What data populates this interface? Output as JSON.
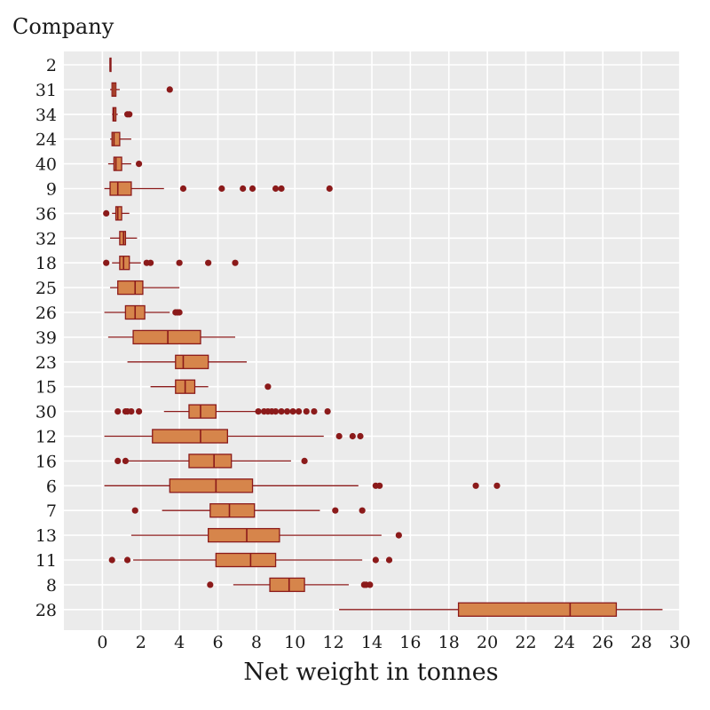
{
  "chart_data": {
    "type": "boxplot",
    "orientation": "horizontal",
    "title": "",
    "ylabel": "Company",
    "xlabel": "Net weight in tonnes",
    "xlim": [
      -2,
      30
    ],
    "xticks": [
      0,
      2,
      4,
      6,
      8,
      10,
      12,
      14,
      16,
      18,
      20,
      22,
      24,
      26,
      28,
      30
    ],
    "grid": true,
    "colors": {
      "box_fill": "#d6854b",
      "box_edge": "#8b1a1a",
      "outlier": "#8b1a1a",
      "panel": "#ebebeb",
      "grid": "#ffffff"
    },
    "categories": [
      "2",
      "31",
      "34",
      "24",
      "40",
      "9",
      "36",
      "32",
      "18",
      "25",
      "26",
      "39",
      "23",
      "15",
      "30",
      "12",
      "16",
      "6",
      "7",
      "13",
      "11",
      "8",
      "28"
    ],
    "boxes": [
      {
        "company": "2",
        "whisker_low": 0.4,
        "q1": 0.4,
        "median": 0.4,
        "q3": 0.4,
        "whisker_high": 0.4,
        "outliers": []
      },
      {
        "company": "31",
        "whisker_low": 0.4,
        "q1": 0.5,
        "median": 0.6,
        "q3": 0.7,
        "whisker_high": 0.9,
        "outliers": [
          3.5
        ]
      },
      {
        "company": "34",
        "whisker_low": 0.5,
        "q1": 0.55,
        "median": 0.6,
        "q3": 0.7,
        "whisker_high": 0.8,
        "outliers": [
          1.3,
          1.4
        ]
      },
      {
        "company": "24",
        "whisker_low": 0.4,
        "q1": 0.5,
        "median": 0.6,
        "q3": 0.9,
        "whisker_high": 1.5,
        "outliers": []
      },
      {
        "company": "40",
        "whisker_low": 0.3,
        "q1": 0.6,
        "median": 0.7,
        "q3": 1.0,
        "whisker_high": 1.5,
        "outliers": [
          1.9
        ]
      },
      {
        "company": "9",
        "whisker_low": 0.1,
        "q1": 0.4,
        "median": 0.8,
        "q3": 1.5,
        "whisker_high": 3.2,
        "outliers": [
          4.2,
          6.2,
          7.3,
          7.8,
          9.0,
          9.3,
          11.8
        ]
      },
      {
        "company": "36",
        "whisker_low": 0.5,
        "q1": 0.7,
        "median": 0.8,
        "q3": 1.0,
        "whisker_high": 1.4,
        "outliers": [
          0.2
        ]
      },
      {
        "company": "32",
        "whisker_low": 0.4,
        "q1": 0.9,
        "median": 1.1,
        "q3": 1.2,
        "whisker_high": 1.8,
        "outliers": []
      },
      {
        "company": "18",
        "whisker_low": 0.5,
        "q1": 0.9,
        "median": 1.1,
        "q3": 1.4,
        "whisker_high": 2.0,
        "outliers": [
          0.2,
          2.3,
          2.5,
          4.0,
          5.5,
          6.9
        ]
      },
      {
        "company": "25",
        "whisker_low": 0.4,
        "q1": 0.8,
        "median": 1.7,
        "q3": 2.1,
        "whisker_high": 4.0,
        "outliers": []
      },
      {
        "company": "26",
        "whisker_low": 0.1,
        "q1": 1.2,
        "median": 1.7,
        "q3": 2.2,
        "whisker_high": 3.5,
        "outliers": [
          3.8,
          3.9,
          4.0
        ]
      },
      {
        "company": "39",
        "whisker_low": 0.3,
        "q1": 1.6,
        "median": 3.4,
        "q3": 5.1,
        "whisker_high": 6.9,
        "outliers": []
      },
      {
        "company": "23",
        "whisker_low": 1.3,
        "q1": 3.8,
        "median": 4.2,
        "q3": 5.5,
        "whisker_high": 7.5,
        "outliers": []
      },
      {
        "company": "15",
        "whisker_low": 2.5,
        "q1": 3.8,
        "median": 4.3,
        "q3": 4.8,
        "whisker_high": 5.5,
        "outliers": [
          8.6
        ]
      },
      {
        "company": "30",
        "whisker_low": 3.2,
        "q1": 4.5,
        "median": 5.1,
        "q3": 5.9,
        "whisker_high": 8.0,
        "outliers": [
          0.8,
          1.2,
          1.3,
          1.5,
          1.9,
          8.1,
          8.4,
          8.6,
          8.8,
          9.0,
          9.3,
          9.6,
          9.9,
          10.2,
          10.6,
          11.0,
          11.7
        ]
      },
      {
        "company": "12",
        "whisker_low": 0.1,
        "q1": 2.6,
        "median": 5.1,
        "q3": 6.5,
        "whisker_high": 11.5,
        "outliers": [
          12.3,
          13.0,
          13.4
        ]
      },
      {
        "company": "16",
        "whisker_low": 1.3,
        "q1": 4.5,
        "median": 5.8,
        "q3": 6.7,
        "whisker_high": 9.8,
        "outliers": [
          0.8,
          1.2,
          10.5
        ]
      },
      {
        "company": "6",
        "whisker_low": 0.1,
        "q1": 3.5,
        "median": 5.9,
        "q3": 7.8,
        "whisker_high": 13.3,
        "outliers": [
          14.2,
          14.4,
          19.4,
          20.5
        ]
      },
      {
        "company": "7",
        "whisker_low": 3.1,
        "q1": 5.6,
        "median": 6.6,
        "q3": 7.9,
        "whisker_high": 11.3,
        "outliers": [
          1.7,
          12.1,
          13.5
        ]
      },
      {
        "company": "13",
        "whisker_low": 1.5,
        "q1": 5.5,
        "median": 7.5,
        "q3": 9.2,
        "whisker_high": 14.5,
        "outliers": [
          15.4
        ]
      },
      {
        "company": "11",
        "whisker_low": 1.6,
        "q1": 5.9,
        "median": 7.7,
        "q3": 9.0,
        "whisker_high": 13.5,
        "outliers": [
          0.5,
          1.3,
          14.2,
          14.9
        ]
      },
      {
        "company": "8",
        "whisker_low": 6.8,
        "q1": 8.7,
        "median": 9.7,
        "q3": 10.5,
        "whisker_high": 12.8,
        "outliers": [
          5.6,
          13.6,
          13.7,
          13.9
        ]
      },
      {
        "company": "28",
        "whisker_low": 12.3,
        "q1": 18.5,
        "median": 24.3,
        "q3": 26.7,
        "whisker_high": 29.1,
        "outliers": []
      }
    ]
  }
}
